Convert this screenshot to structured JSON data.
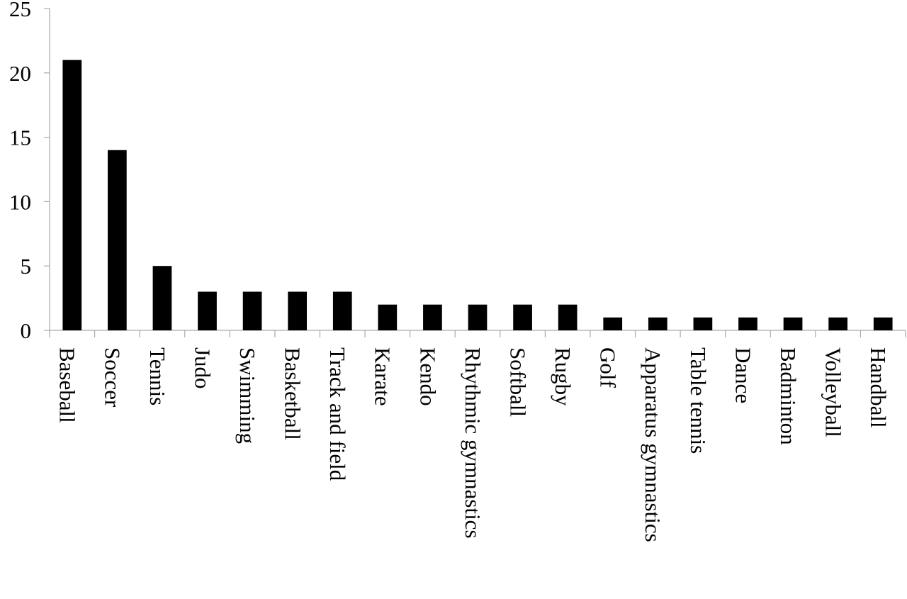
{
  "chart_data": {
    "type": "bar",
    "title": "",
    "xlabel": "",
    "ylabel": "",
    "categories": [
      "Baseball",
      "Soccer",
      "Tennis",
      "Judo",
      "Swimming",
      "Basketball",
      "Track and field",
      "Karate",
      "Kendo",
      "Rhythmic gymnastics",
      "Softball",
      "Rugby",
      "Golf",
      "Apparatus gymnastics",
      "Table tennis",
      "Dance",
      "Badminton",
      "Volleyball",
      "Handball"
    ],
    "values": [
      21,
      14,
      5,
      3,
      3,
      3,
      3,
      2,
      2,
      2,
      2,
      2,
      1,
      1,
      1,
      1,
      1,
      1,
      1
    ],
    "ylim": [
      0,
      25
    ],
    "yticks": [
      "0",
      "5",
      "10",
      "15",
      "20",
      "25"
    ],
    "grid": false,
    "legend": "none",
    "bar_color": "#000000",
    "axis_color": "#aaaaaa"
  }
}
